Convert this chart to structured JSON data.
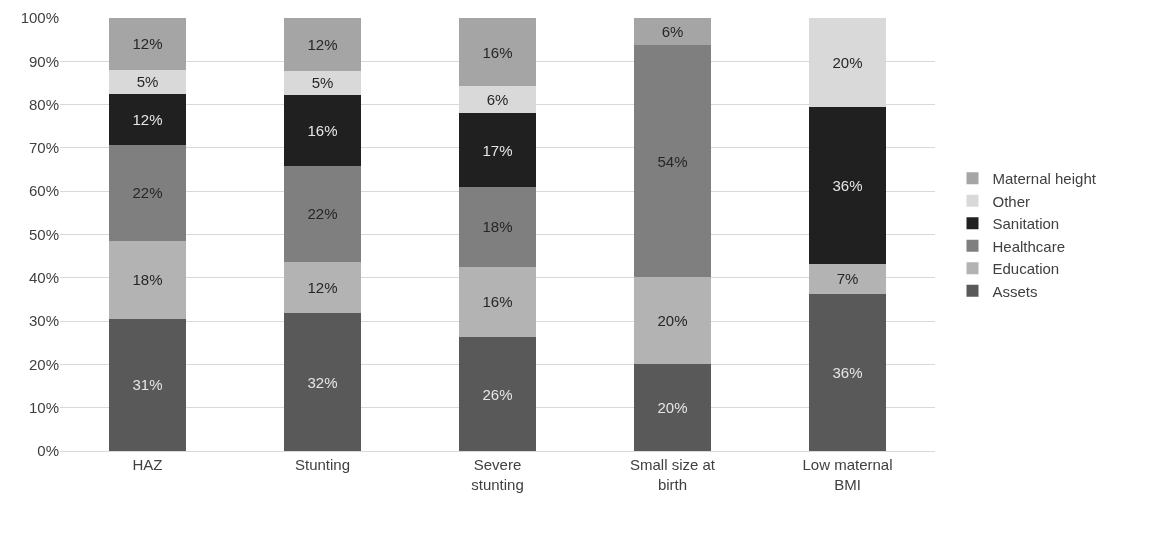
{
  "chart_data": {
    "type": "bar",
    "stacked": true,
    "categories": [
      "HAZ",
      "Stunting",
      "Severe stunting",
      "Small size at birth",
      "Low maternal BMI"
    ],
    "series": [
      {
        "name": "Assets",
        "color": "#595959",
        "values": [
          30.5,
          31.8,
          26.3,
          20.2,
          36.3
        ],
        "value_labels": [
          "31%",
          "32%",
          "26%",
          "20%",
          "36%"
        ]
      },
      {
        "name": "Education",
        "color": "#b3b3b3",
        "values": [
          18,
          11.8,
          16.3,
          19.9,
          6.9
        ],
        "value_labels": [
          "18%",
          "12%",
          "16%",
          "20%",
          "7%"
        ]
      },
      {
        "name": "Healthcare",
        "color": "#7f7f7f",
        "values": [
          22.2,
          22.3,
          18.3,
          53.7,
          0
        ],
        "value_labels": [
          "22%",
          "22%",
          "18%",
          "54%",
          null
        ]
      },
      {
        "name": "Sanitation",
        "color": "#202020",
        "values": [
          11.8,
          16.4,
          17.1,
          0,
          36.3
        ],
        "value_labels": [
          "12%",
          "16%",
          "17%",
          null,
          "36%"
        ]
      },
      {
        "name": "Other",
        "color": "#d9d9d9",
        "values": [
          5.5,
          5.4,
          6.2,
          0,
          20.5
        ],
        "value_labels": [
          "5%",
          "5%",
          "6%",
          null,
          "20%"
        ]
      },
      {
        "name": "Maternal height",
        "color": "#a5a5a5",
        "values": [
          12,
          12.2,
          15.8,
          6.2,
          0
        ],
        "value_labels": [
          "12%",
          "12%",
          "16%",
          "6%",
          null
        ]
      }
    ],
    "ylim": [
      0,
      100
    ],
    "yticks": [
      {
        "value": 0,
        "label": "0%"
      },
      {
        "value": 10,
        "label": "10%"
      },
      {
        "value": 20,
        "label": "20%"
      },
      {
        "value": 30,
        "label": "30%"
      },
      {
        "value": 40,
        "label": "40%"
      },
      {
        "value": 50,
        "label": "50%"
      },
      {
        "value": 60,
        "label": "60%"
      },
      {
        "value": 70,
        "label": "70%"
      },
      {
        "value": 80,
        "label": "80%"
      },
      {
        "value": 90,
        "label": "90%"
      },
      {
        "value": 100,
        "label": "100%"
      }
    ],
    "grid": "y",
    "legend": "right"
  }
}
